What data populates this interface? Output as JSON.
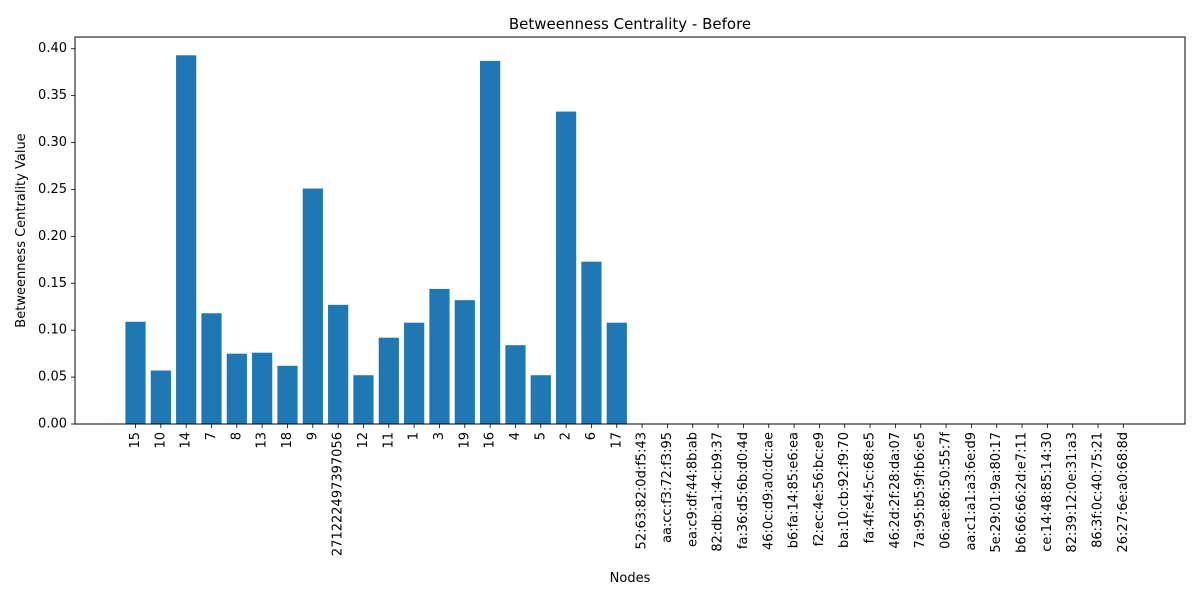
{
  "chart_data": {
    "type": "bar",
    "title": "Betweenness Centrality - Before",
    "xlabel": "Nodes",
    "ylabel": "Betweenness Centrality Value",
    "ylim": [
      0,
      0.4125
    ],
    "yticks": [
      "0.00",
      "0.05",
      "0.10",
      "0.15",
      "0.20",
      "0.25",
      "0.30",
      "0.35",
      "0.40"
    ],
    "ytick_values": [
      0,
      0.05,
      0.1,
      0.15,
      0.2,
      0.25,
      0.3,
      0.35,
      0.4
    ],
    "grid": false,
    "legend": "none",
    "bar_color": "#1f77b4",
    "categories": [
      "15",
      "10",
      "14",
      "7",
      "8",
      "13",
      "18",
      "9",
      "271222497397056",
      "12",
      "11",
      "1",
      "3",
      "19",
      "16",
      "4",
      "5",
      "2",
      "6",
      "17",
      "52:63:82:0d:f5:43",
      "aa:cc:f3:72:f3:95",
      "ea:c9:df:44:8b:ab",
      "82:db:a1:4c:b9:37",
      "fa:36:d5:6b:d0:4d",
      "46:0c:d9:a0:dc:ae",
      "b6:fa:14:85:e6:ea",
      "f2:ec:4e:56:bc:e9",
      "ba:10:cb:92:f9:70",
      "fa:4f:e4:5c:68:e5",
      "46:2d:2f:28:da:07",
      "7a:95:b5:9f:b6:e5",
      "06:ae:86:50:55:7f",
      "aa:c1:a1:a3:6e:d9",
      "5e:29:01:9a:80:17",
      "b6:66:66:2d:e7:11",
      "ce:14:48:85:14:30",
      "82:39:12:0e:31:a3",
      "86:3f:0c:40:75:21",
      "26:27:6e:a0:68:8d"
    ],
    "values": [
      0.109,
      0.057,
      0.393,
      0.118,
      0.075,
      0.076,
      0.062,
      0.251,
      0.127,
      0.052,
      0.092,
      0.108,
      0.144,
      0.132,
      0.387,
      0.084,
      0.052,
      0.333,
      0.173,
      0.108,
      0,
      0,
      0,
      0,
      0,
      0,
      0,
      0,
      0,
      0,
      0,
      0,
      0,
      0,
      0,
      0,
      0,
      0,
      0,
      0
    ]
  }
}
